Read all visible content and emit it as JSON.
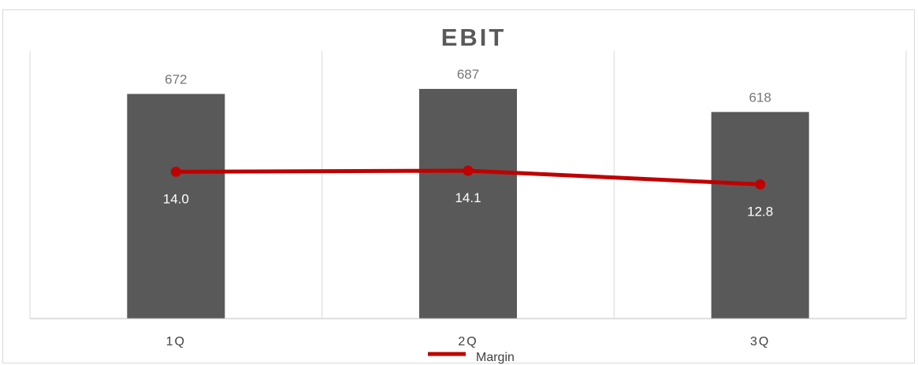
{
  "chart_data": {
    "type": "bar",
    "title": "EBIT",
    "categories": [
      "1Q",
      "2Q",
      "3Q"
    ],
    "series": [
      {
        "type": "bar",
        "values": [
          672,
          687,
          618
        ],
        "color": "#595959"
      },
      {
        "name": "Margin",
        "type": "line",
        "values": [
          14.0,
          14.1,
          12.8
        ],
        "color": "#c00000"
      }
    ],
    "bar_value_labels": [
      "672",
      "687",
      "618"
    ],
    "line_value_labels": [
      "14.0",
      "14.1",
      "12.8"
    ],
    "ylim": [
      0,
      800
    ],
    "line_ylim": [
      0,
      25.5
    ],
    "grid": "vertical",
    "legend": "bottom"
  }
}
